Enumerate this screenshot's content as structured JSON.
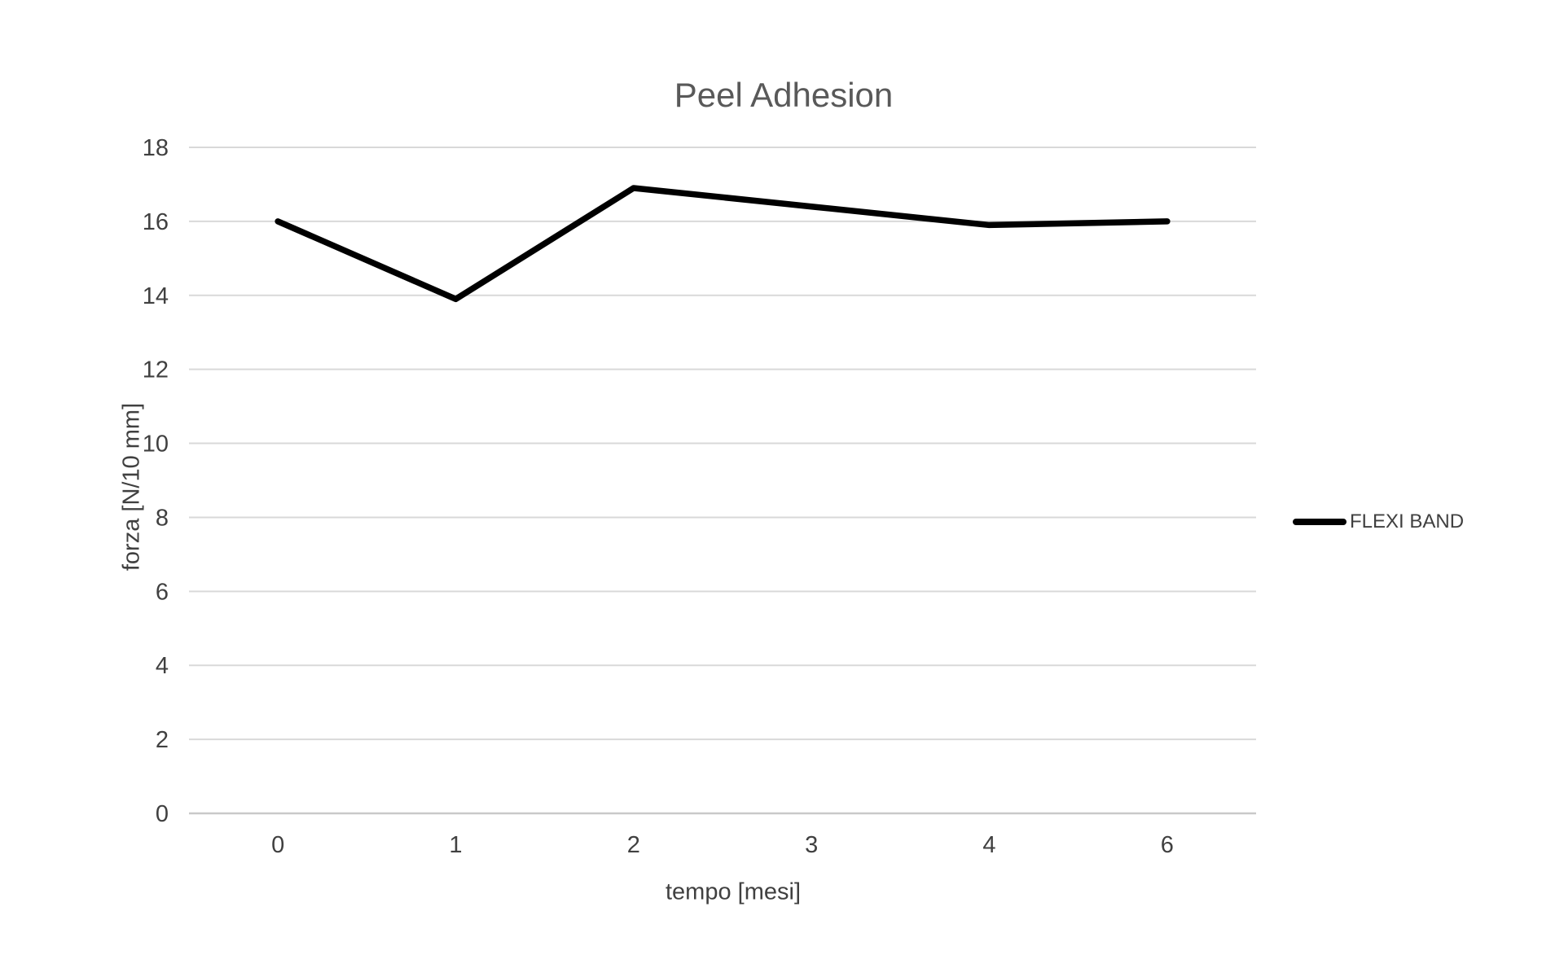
{
  "chart_data": {
    "type": "line",
    "title": "Peel Adhesion",
    "xlabel": "tempo [mesi]",
    "ylabel": "forza [N/10 mm]",
    "categories": [
      "0",
      "1",
      "2",
      "3",
      "4",
      "6"
    ],
    "series": [
      {
        "name": "FLEXI BAND",
        "color": "#000000",
        "values": [
          16,
          13.9,
          16.9,
          16.4,
          15.9,
          16
        ]
      }
    ],
    "ylim": [
      0,
      18
    ],
    "ytick_step": 2,
    "grid": true,
    "legend_position": "right",
    "colors": {
      "gridline": "#d9d9d9",
      "axis_line": "#c9c9c9",
      "tick_text": "#404040",
      "title_text": "#595959"
    }
  }
}
